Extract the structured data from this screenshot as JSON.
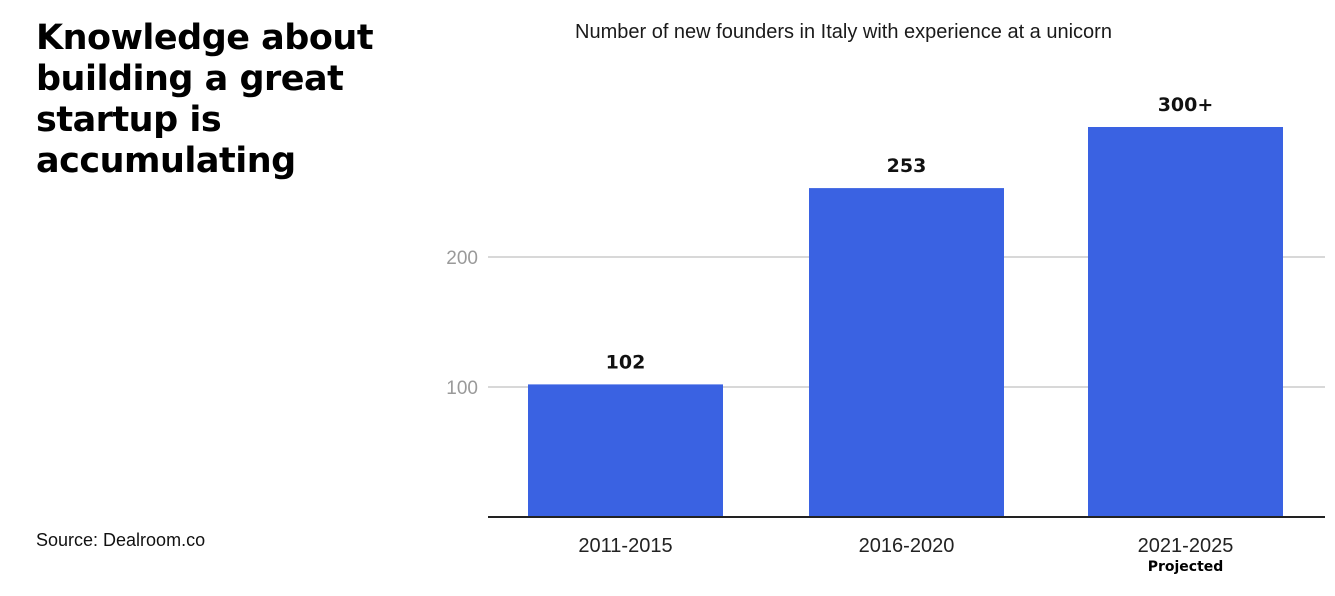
{
  "headline": "Knowledge about building a great startup is accumulating",
  "source": "Source:  Dealroom.co",
  "chart_data": {
    "type": "bar",
    "title": "Number of new founders in Italy with experience at a unicorn",
    "categories": [
      "2011-2015",
      "2016-2020",
      "2021-2025"
    ],
    "values": [
      102,
      253,
      300
    ],
    "value_labels": [
      "102",
      "253",
      "300+"
    ],
    "category_notes": [
      "",
      "",
      "Projected"
    ],
    "yticks": [
      100,
      200
    ],
    "ylim": [
      0,
      300
    ],
    "grid": true,
    "bar_color": "#3a62e2",
    "xlabel": "",
    "ylabel": ""
  }
}
